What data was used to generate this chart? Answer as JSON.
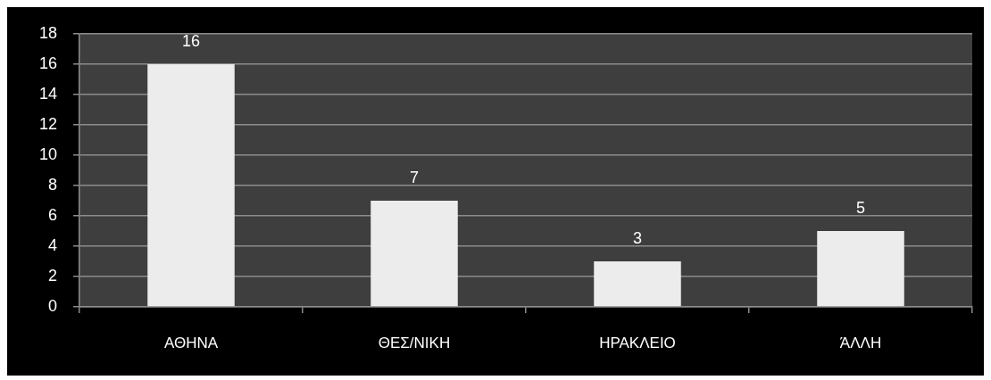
{
  "chart_data": {
    "type": "bar",
    "categories": [
      "ΑΘΗΝΑ",
      "ΘΕΣ/ΝΙΚΗ",
      "ΗΡΑΚΛΕΙΟ",
      "ΆΛΛΗ"
    ],
    "values": [
      16,
      7,
      3,
      5
    ],
    "color": "#ececec",
    "ylim": [
      0,
      18
    ],
    "yticks": [
      0,
      2,
      4,
      6,
      8,
      10,
      12,
      14,
      16,
      18
    ],
    "grid": "y",
    "data_labels": true
  }
}
